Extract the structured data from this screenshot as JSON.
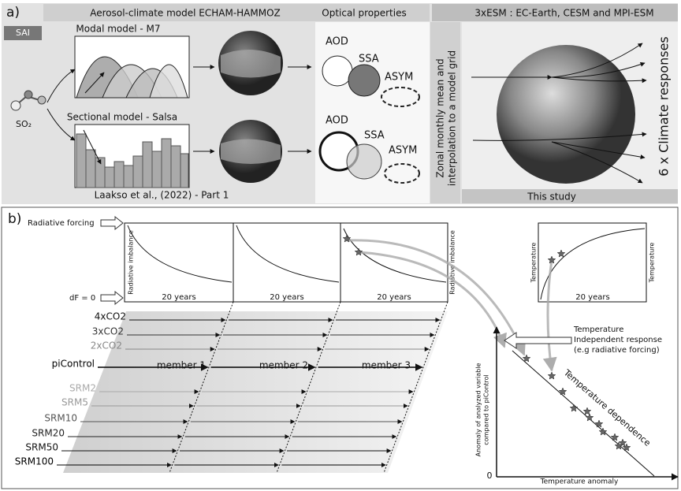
{
  "panel_a": {
    "label": "a)",
    "sai": "SAI",
    "model_title": "Aerosol-climate model ECHAM-HAMMOZ",
    "modal_model": "Modal model - M7",
    "sectional_model": "Sectional model - Salsa",
    "precursor": "SO₂",
    "citation": "Laakso et al., (2022) - Part 1",
    "optical_title": "Optical properties",
    "optical_sets": [
      {
        "aod": "AOD",
        "ssa": "SSA",
        "asym": "ASYM"
      },
      {
        "aod": "AOD",
        "ssa": "SSA",
        "asym": "ASYM"
      }
    ],
    "interpolation": [
      "Zonal monthly mean and",
      "interpolation to a model grid"
    ],
    "esm_title": "3xESM : EC-Earth, CESM and MPI-ESM",
    "responses": "6 x Climate responses",
    "footer": "This study"
  },
  "panel_b": {
    "label": "b)",
    "radiative_forcing": "Radiative forcing",
    "df_zero": "dF = 0",
    "imbalance_plots": [
      {
        "y_label": "Radiative imbalance",
        "x_label": "20 years"
      },
      {
        "x_label": "20 years"
      },
      {
        "y_label": "Radiative imbalance",
        "x_label": "20 years"
      }
    ],
    "scenarios": [
      "4xCO2",
      "3xCO2",
      "2xCO2",
      "piControl",
      "SRM2",
      "SRM5",
      "SRM10",
      "SRM20",
      "SRM50",
      "SRM100"
    ],
    "members": [
      "member 1",
      "member 2",
      "member 3"
    ],
    "temperature_plot": {
      "y_label": "Temperature",
      "y2_label": "Temperature",
      "x_label": "20 years"
    },
    "annotation": [
      "Temperature",
      "Independent response",
      "(e.g radiative forcing)"
    ],
    "trend_label": "Temperature dependence",
    "scatter": {
      "y_label": [
        "Anomaly of analyzed variable",
        "compared to piControl"
      ],
      "origin": "0",
      "x_label": "Temperature anomaly"
    }
  }
}
